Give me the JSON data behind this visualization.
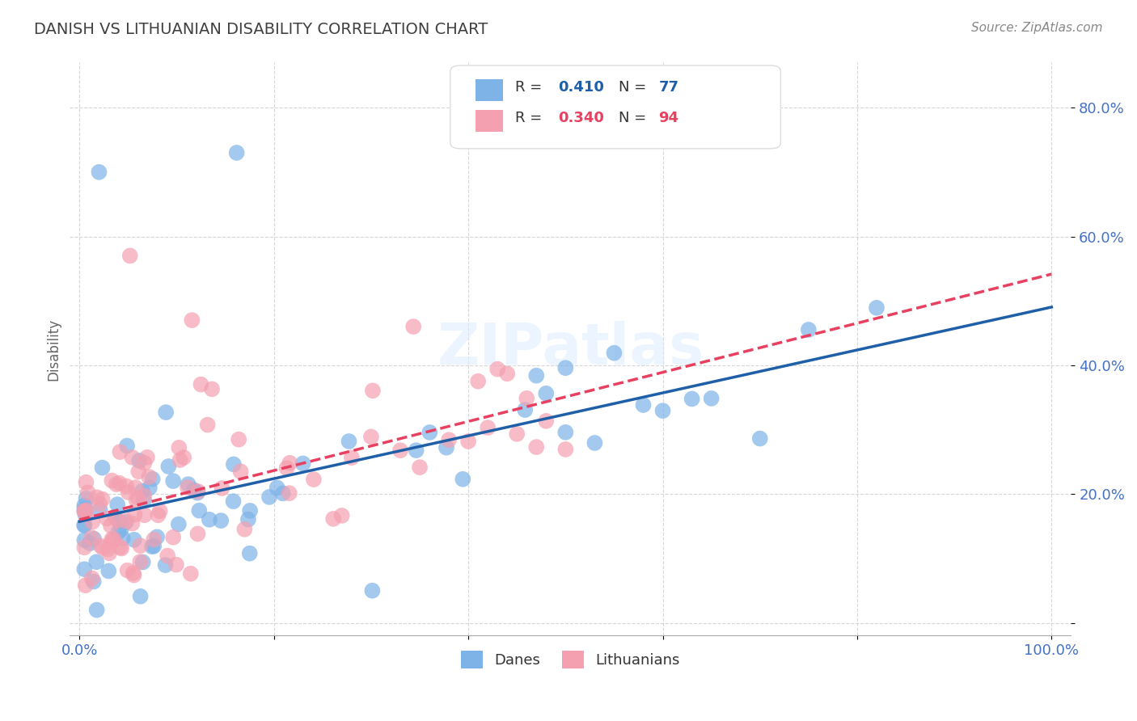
{
  "title": "DANISH VS LITHUANIAN DISABILITY CORRELATION CHART",
  "source": "Source: ZipAtlas.com",
  "ylabel": "Disability",
  "xlim": [
    0.0,
    1.0
  ],
  "ylim": [
    0.0,
    0.85
  ],
  "x_ticks": [
    0.0,
    0.2,
    0.4,
    0.6,
    0.8,
    1.0
  ],
  "x_tick_labels": [
    "0.0%",
    "",
    "",
    "",
    "",
    "100.0%"
  ],
  "y_ticks": [
    0.0,
    0.2,
    0.4,
    0.6,
    0.8
  ],
  "y_tick_labels": [
    "",
    "20.0%",
    "40.0%",
    "60.0%",
    "80.0%"
  ],
  "danes_color": "#7EB3E8",
  "lithuanians_color": "#F4A0B0",
  "danes_line_color": "#1E5FA8",
  "lithuanians_line_color": "#E84060",
  "danes_R": 0.41,
  "danes_N": 77,
  "lithuanians_R": 0.34,
  "lithuanians_N": 94,
  "watermark": "ZIPatlas",
  "background_color": "#FFFFFF",
  "grid_color": "#CCCCCC",
  "title_color": "#404040",
  "tick_label_color": "#4472C4"
}
